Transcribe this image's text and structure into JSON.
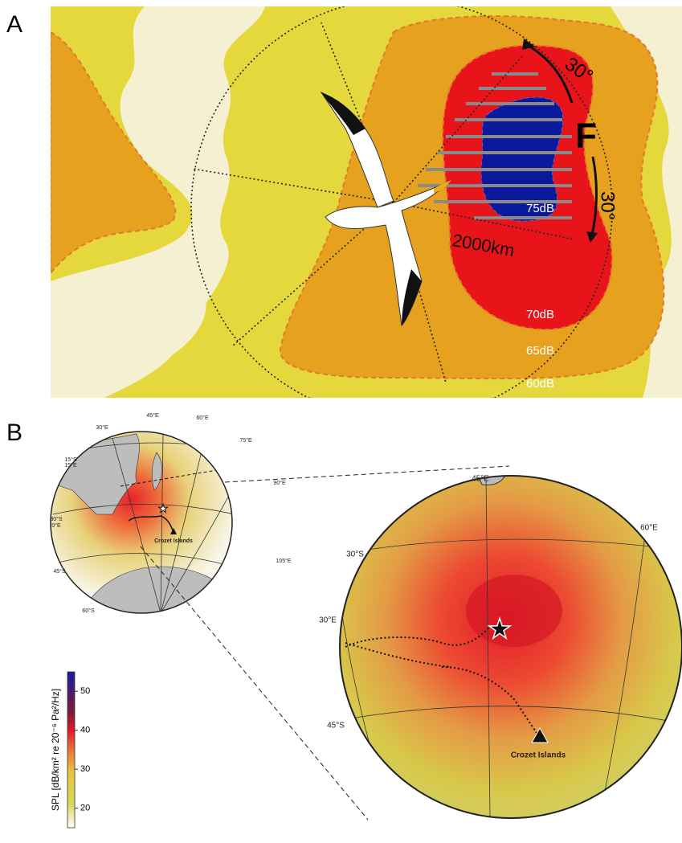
{
  "panel_a": {
    "label": "A",
    "angle_labels": [
      "30°",
      "30°"
    ],
    "direction_label": "F",
    "distance_label": "2000km",
    "contour_labels": [
      "75dB",
      "70dB",
      "65dB",
      "60dB"
    ]
  },
  "panel_b": {
    "label": "B",
    "overview_map": {
      "grid_labels": [
        "45°E",
        "60°E",
        "30°E",
        "75°E",
        "15°S",
        "15°E",
        "90°E",
        "30°S",
        "0°E",
        "105°E",
        "45°S",
        "60°S"
      ],
      "site_label": "Crozet Islands"
    },
    "zoom_map": {
      "grid_labels": [
        "45°E",
        "60°E",
        "30°S",
        "30°E",
        "45°S"
      ],
      "site_label": "Crozet Islands"
    },
    "colorbar": {
      "label": "SPL [dB/km² re 20⁻⁶ Pa²/Hz]",
      "range": [
        15,
        55
      ],
      "ticks": [
        20,
        30,
        40,
        50
      ]
    }
  }
}
